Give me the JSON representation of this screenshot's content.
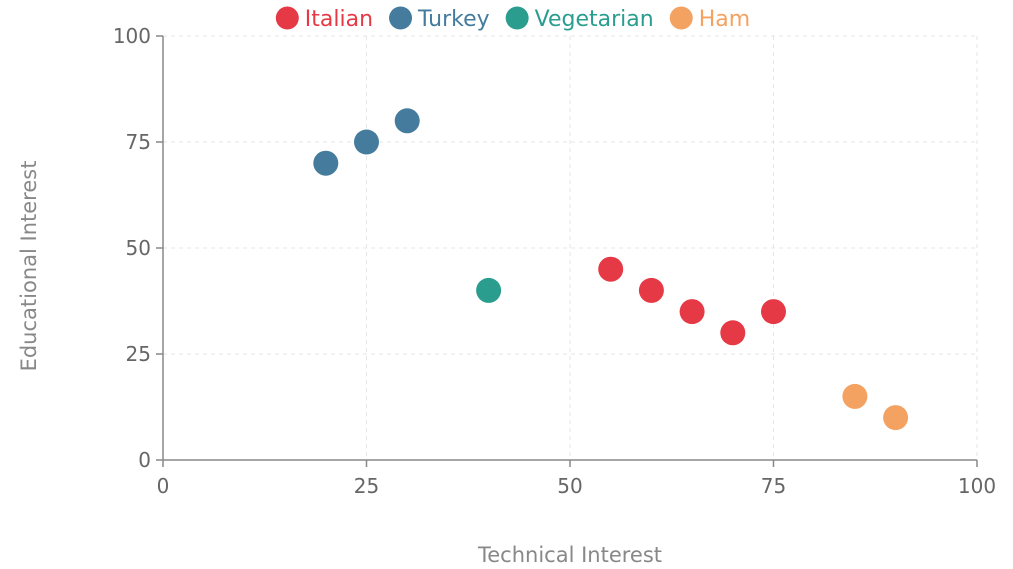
{
  "chart_data": {
    "type": "scatter",
    "title": "",
    "xlabel": "Technical Interest",
    "ylabel": "Educational Interest",
    "xlim": [
      0,
      100
    ],
    "ylim": [
      0,
      100
    ],
    "x_ticks": [
      "0",
      "25",
      "50",
      "75",
      "100"
    ],
    "y_ticks": [
      "0",
      "25",
      "50",
      "75",
      "100"
    ],
    "grid": true,
    "legend_position": "top",
    "series": [
      {
        "name": "Italian",
        "color": "#e63946",
        "points": [
          {
            "x": 55,
            "y": 45
          },
          {
            "x": 60,
            "y": 40
          },
          {
            "x": 65,
            "y": 35
          },
          {
            "x": 70,
            "y": 30
          },
          {
            "x": 75,
            "y": 35
          }
        ]
      },
      {
        "name": "Turkey",
        "color": "#457b9d",
        "points": [
          {
            "x": 20,
            "y": 70
          },
          {
            "x": 25,
            "y": 75
          },
          {
            "x": 30,
            "y": 80
          }
        ]
      },
      {
        "name": "Vegetarian",
        "color": "#2a9d8f",
        "points": [
          {
            "x": 40,
            "y": 40
          }
        ]
      },
      {
        "name": "Ham",
        "color": "#f4a261",
        "points": [
          {
            "x": 85,
            "y": 15
          },
          {
            "x": 90,
            "y": 10
          }
        ]
      }
    ]
  }
}
